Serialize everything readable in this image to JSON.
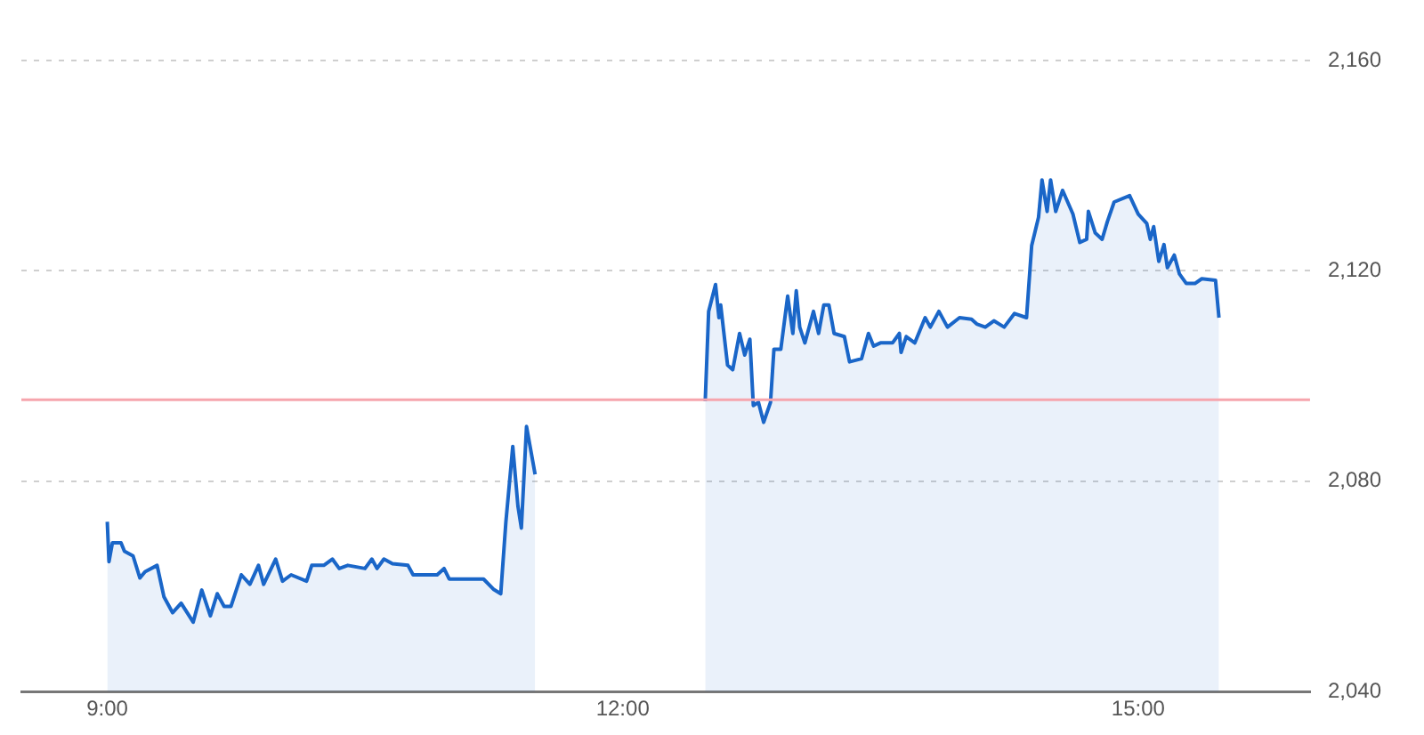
{
  "chart_data": {
    "type": "area",
    "xlim": [
      8.5,
      16
    ],
    "xticks": [
      {
        "value": 9,
        "label": "9:00"
      },
      {
        "value": 12,
        "label": "12:00"
      },
      {
        "value": 15,
        "label": "15:00"
      }
    ],
    "ylim": [
      2040,
      2160
    ],
    "yticks": [
      {
        "value": 2040,
        "label": "2,040"
      },
      {
        "value": 2080,
        "label": "2,080"
      },
      {
        "value": 2120,
        "label": "2,120"
      },
      {
        "value": 2160,
        "label": "2,160"
      }
    ],
    "grid": "y",
    "legend": false,
    "ref_lines": [
      {
        "axis": "y",
        "value": 2095.5,
        "color": "#f6a5ad"
      }
    ],
    "series": [
      {
        "color": "#1a66c8",
        "x": [
          9.0,
          9.01,
          9.03,
          9.08,
          9.1,
          9.15,
          9.19,
          9.22,
          9.29,
          9.33,
          9.38,
          9.43,
          9.5,
          9.55,
          9.6,
          9.64,
          9.68,
          9.72,
          9.78,
          9.83,
          9.88,
          9.91,
          9.98,
          10.02,
          10.07,
          10.16,
          10.19,
          10.26,
          10.31,
          10.35,
          10.4,
          10.5,
          10.54,
          10.57,
          10.61,
          10.66,
          10.75,
          10.78,
          10.92,
          10.96,
          10.99,
          11.19,
          11.25,
          11.29,
          11.32,
          11.36,
          11.39,
          11.41,
          11.44,
          11.49,
          12.0,
          12.48,
          12.5,
          12.54,
          12.56,
          12.57,
          12.61,
          12.64,
          12.68,
          12.71,
          12.74,
          12.76,
          12.79,
          12.82,
          12.86,
          12.88,
          12.92,
          12.96,
          12.99,
          13.01,
          13.03,
          13.06,
          13.11,
          13.14,
          13.17,
          13.2,
          13.23,
          13.29,
          13.32,
          13.39,
          13.43,
          13.46,
          13.5,
          13.57,
          13.61,
          13.62,
          13.65,
          13.7,
          13.76,
          13.79,
          13.84,
          13.89,
          13.96,
          14.03,
          14.06,
          14.11,
          14.16,
          14.22,
          14.28,
          14.35,
          14.38,
          14.42,
          14.44,
          14.47,
          14.49,
          14.52,
          14.56,
          14.62,
          14.66,
          14.7,
          14.71,
          14.75,
          14.79,
          14.82,
          14.86,
          14.95,
          15.0,
          15.05,
          15.07,
          15.09,
          15.12,
          15.15,
          15.17,
          15.21,
          15.24,
          15.28,
          15.33,
          15.37,
          15.45,
          15.47
        ],
        "values": [
          2072.3,
          2064.7,
          2068.3,
          2068.3,
          2066.7,
          2065.8,
          2061.6,
          2062.8,
          2064,
          2058,
          2055,
          2056.8,
          2053.2,
          2059.3,
          2054.4,
          2058.6,
          2056.2,
          2056.2,
          2062.2,
          2060.4,
          2064,
          2060.4,
          2065.2,
          2061,
          2062.2,
          2061,
          2064,
          2064,
          2065.2,
          2063.4,
          2064,
          2063.4,
          2065.2,
          2063.4,
          2065.2,
          2064.3,
          2064,
          2062.2,
          2062.2,
          2063.4,
          2061.4,
          2061.4,
          2059.4,
          2058.6,
          2072.3,
          2086.6,
          2075.3,
          2071.1,
          2090.4,
          2081.3,
          null,
          2095.2,
          2112.3,
          2117.4,
          2111.1,
          2113.5,
          2102.1,
          2101.2,
          2108.1,
          2104,
          2107,
          2094.4,
          2095,
          2091.2,
          2095,
          2105.1,
          2105.1,
          2115.2,
          2108.1,
          2116.2,
          2109.3,
          2106.3,
          2112.3,
          2108.1,
          2113.5,
          2113.5,
          2108.1,
          2107.5,
          2102.7,
          2103.3,
          2108.1,
          2105.7,
          2106.3,
          2106.3,
          2108.1,
          2104.5,
          2107.5,
          2106.3,
          2111.1,
          2109.3,
          2112.3,
          2109.3,
          2111.1,
          2110.8,
          2109.9,
          2109.3,
          2110.5,
          2109.3,
          2111.9,
          2111.1,
          2124.8,
          2130.2,
          2137.3,
          2131.3,
          2137.3,
          2131.3,
          2135.3,
          2130.8,
          2125.4,
          2126,
          2131.3,
          2127.2,
          2126,
          2129.3,
          2133.1,
          2134.3,
          2130.8,
          2129,
          2126,
          2128.4,
          2121.8,
          2125,
          2120.6,
          2123,
          2119.4,
          2117.6,
          2117.6,
          2118.5,
          2118.2,
          2111.1
        ]
      }
    ]
  }
}
